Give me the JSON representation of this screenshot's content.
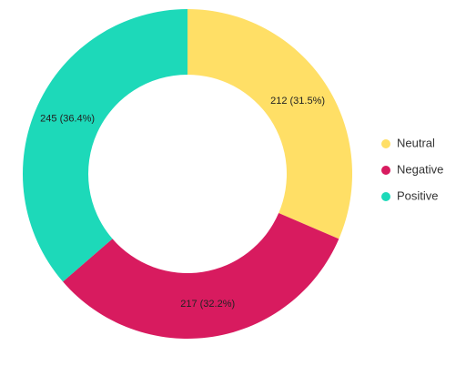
{
  "chart_data": {
    "type": "pie",
    "variant": "donut",
    "title": "",
    "categories": [
      "Neutral",
      "Negative",
      "Positive"
    ],
    "values": [
      212,
      217,
      245
    ],
    "percentages": [
      "31.5%",
      "32.2%",
      "36.4%"
    ],
    "slice_labels": [
      "212 (31.5%)",
      "217 (32.2%)",
      "245 (36.4%)"
    ],
    "colors": [
      "#ffdf66",
      "#d81b5f",
      "#1dd9b9"
    ],
    "legend_placement": "right",
    "start_angle": "top, clockwise"
  }
}
